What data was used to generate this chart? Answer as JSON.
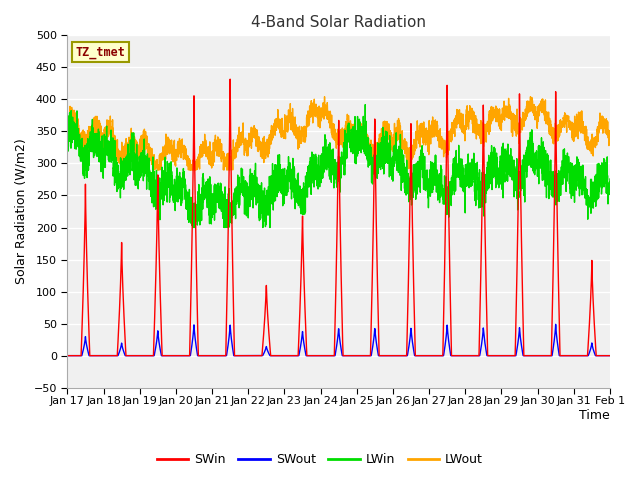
{
  "title": "4-Band Solar Radiation",
  "xlabel": "Time",
  "ylabel": "Solar Radiation (W/m2)",
  "ylim": [
    -50,
    500
  ],
  "plot_bg_color": "#f0f0f0",
  "fig_bg_color": "#ffffff",
  "legend_label": "TZ_tmet",
  "legend_label_color": "#8b0000",
  "legend_box_facecolor": "#ffffcc",
  "legend_box_edgecolor": "#999900",
  "series_colors": {
    "SWin": "#ff0000",
    "SWout": "#0000ff",
    "LWin": "#00dd00",
    "LWout": "#ffa500"
  },
  "x_tick_labels": [
    "Jan 17",
    "Jan 18",
    "Jan 19",
    "Jan 20",
    "Jan 21",
    "Jan 22",
    "Jan 23",
    "Jan 24",
    "Jan 25",
    "Jan 26",
    "Jan 27",
    "Jan 28",
    "Jan 29",
    "Jan 30",
    "Jan 31",
    "Feb 1"
  ],
  "yticks": [
    -50,
    0,
    50,
    100,
    150,
    200,
    250,
    300,
    350,
    400,
    450,
    500
  ],
  "SWin_peaks": [
    270,
    180,
    290,
    420,
    450,
    115,
    230,
    390,
    390,
    380,
    440,
    405,
    420,
    420,
    150
  ],
  "SWout_peaks": [
    30,
    20,
    40,
    50,
    50,
    15,
    40,
    45,
    45,
    45,
    50,
    45,
    45,
    50,
    20
  ],
  "LWin_levels": [
    340,
    310,
    285,
    250,
    230,
    245,
    260,
    280,
    330,
    295,
    265,
    270,
    280,
    295,
    265
  ],
  "LWout_levels": [
    355,
    340,
    315,
    310,
    305,
    325,
    350,
    370,
    335,
    330,
    335,
    355,
    365,
    375,
    345
  ]
}
